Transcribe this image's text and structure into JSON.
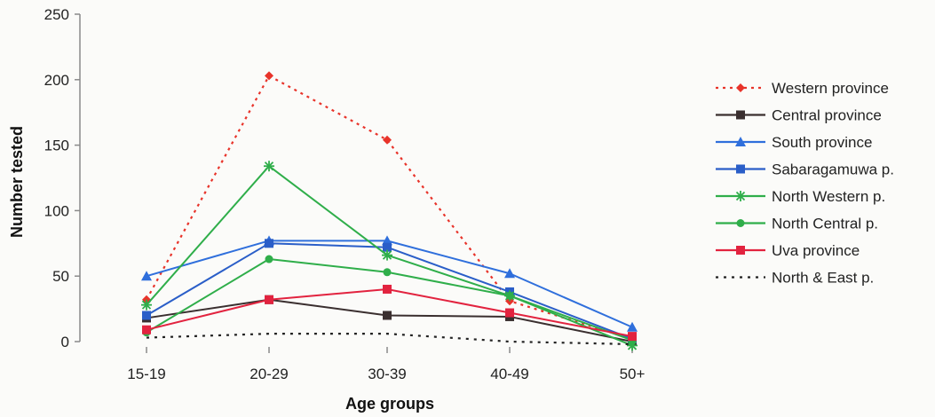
{
  "chart_data": {
    "type": "line",
    "title": "",
    "xlabel": "Age groups",
    "ylabel": "Number tested",
    "categories": [
      "15-19",
      "20-29",
      "30-39",
      "40-49",
      "50+"
    ],
    "ylim": [
      0,
      250
    ],
    "yticks": [
      0,
      50,
      100,
      150,
      200,
      250
    ],
    "grid": false,
    "legend_position": "right",
    "series": [
      {
        "name": "Western province",
        "values": [
          32,
          203,
          154,
          31,
          2
        ],
        "color": "#e8332a",
        "dash": "dotted",
        "marker": "diamond"
      },
      {
        "name": "Central province",
        "values": [
          18,
          32,
          20,
          19,
          0
        ],
        "color": "#3a2f2f",
        "dash": "solid",
        "marker": "square"
      },
      {
        "name": "South province",
        "values": [
          50,
          77,
          77,
          52,
          11
        ],
        "color": "#2f6fdc",
        "dash": "solid",
        "marker": "triangle"
      },
      {
        "name": "Sabaragamuwa p.",
        "values": [
          20,
          75,
          72,
          38,
          2
        ],
        "color": "#2a5ec8",
        "dash": "solid",
        "marker": "square"
      },
      {
        "name": "North Western p.",
        "values": [
          28,
          134,
          66,
          35,
          -3
        ],
        "color": "#2fae4a",
        "dash": "solid",
        "marker": "star"
      },
      {
        "name": "North Central p.",
        "values": [
          7,
          63,
          53,
          35,
          1
        ],
        "color": "#2fae4a",
        "dash": "solid",
        "marker": "circle"
      },
      {
        "name": "Uva province",
        "values": [
          9,
          32,
          40,
          22,
          4
        ],
        "color": "#e2233f",
        "dash": "solid",
        "marker": "square"
      },
      {
        "name": "North & East p.",
        "values": [
          3,
          6,
          6,
          0,
          -2
        ],
        "color": "#222222",
        "dash": "dashed",
        "marker": "none"
      }
    ]
  }
}
